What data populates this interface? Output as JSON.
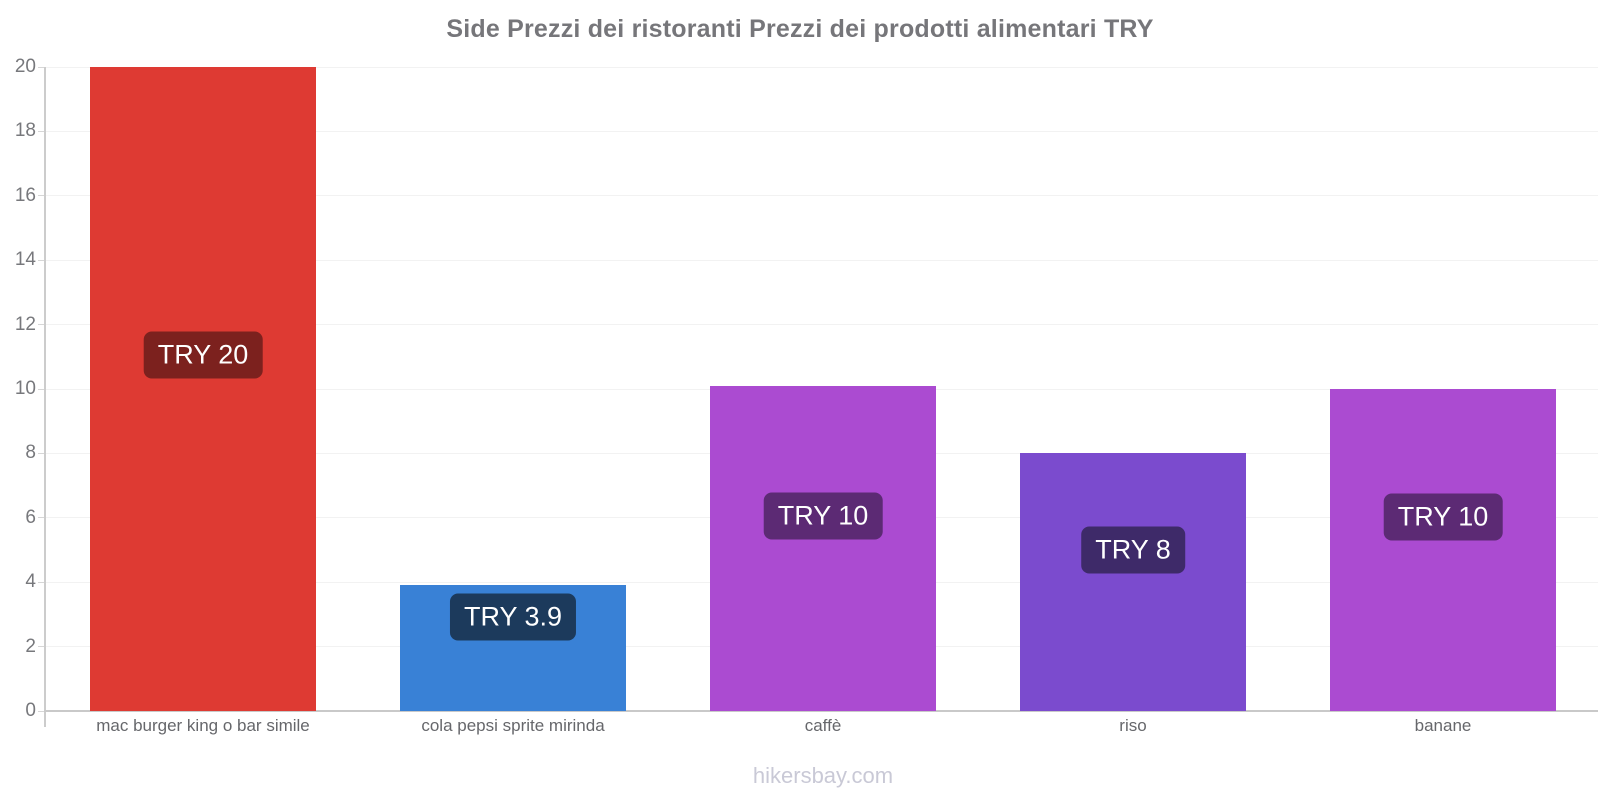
{
  "title": "Side Prezzi dei ristoranti Prezzi dei prodotti alimentari TRY",
  "footer": "hikersbay.com",
  "chart_data": {
    "type": "bar",
    "title": "Side Prezzi dei ristoranti Prezzi dei prodotti alimentari TRY",
    "currency": "TRY",
    "categories": [
      "mac burger king o bar simile",
      "cola pepsi sprite mirinda",
      "caffè",
      "riso",
      "banane"
    ],
    "values": [
      20,
      3.9,
      10.1,
      8,
      10
    ],
    "value_labels": [
      "TRY 20",
      "TRY 3.9",
      "TRY 10",
      "TRY 8",
      "TRY 10"
    ],
    "bar_colors": [
      "#de3a33",
      "#3981d6",
      "#ab4bd1",
      "#7b4bce",
      "#ab4bd1"
    ],
    "badge_colors": [
      "#7c211e",
      "#1c3a5c",
      "#5c2a74",
      "#3e2a69",
      "#5c2a74"
    ],
    "badge_fracs": [
      0.447,
      0.252,
      0.4,
      0.375,
      0.398
    ],
    "xlabel": "",
    "ylabel": "",
    "ylim": [
      0,
      20
    ],
    "yticks": [
      0,
      2,
      4,
      6,
      8,
      10,
      12,
      14,
      16,
      18,
      20
    ],
    "grid": true,
    "legend": false
  },
  "colors": {
    "background": "#ffffff",
    "title_text": "#76767a",
    "ytick_text": "#77787c",
    "category_text": "#66676b",
    "footer_text": "#c9c9d6",
    "gridline": "#f2f2f2",
    "axis_line": "#c9c9c9",
    "badge_text": "#ffffff"
  }
}
